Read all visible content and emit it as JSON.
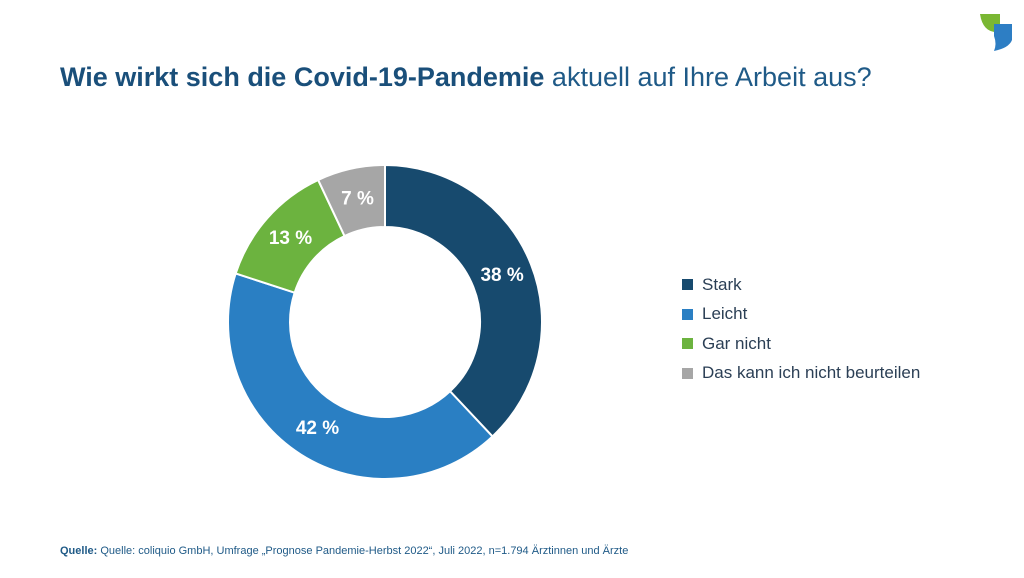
{
  "title": {
    "bold": "Wie wirkt sich die Covid-19-Pandemie",
    "regular": "aktuell auf Ihre Arbeit aus?"
  },
  "source": {
    "label": "Quelle:",
    "text": "Quelle: coliquio GmbH, Umfrage „Prognose Pandemie-Herbst 2022“, Juli 2022, n=1.794 Ärztinnen und Ärzte"
  },
  "colors": {
    "title": "#1a4f7a",
    "logo_green": "#7ab733",
    "logo_blue": "#2d7ec4"
  },
  "chart_data": {
    "type": "pie",
    "variant": "donut",
    "title": "",
    "categories": [
      "Stark",
      "Leicht",
      "Gar nicht",
      "Das kann ich nicht beurteilen"
    ],
    "values": [
      38,
      42,
      13,
      7
    ],
    "labels": [
      "38 %",
      "42 %",
      "13 %",
      "7 %"
    ],
    "colors": [
      "#174a6e",
      "#2a7fc3",
      "#6cb33f",
      "#a6a6a6"
    ],
    "unit": "%",
    "legend_position": "right"
  }
}
